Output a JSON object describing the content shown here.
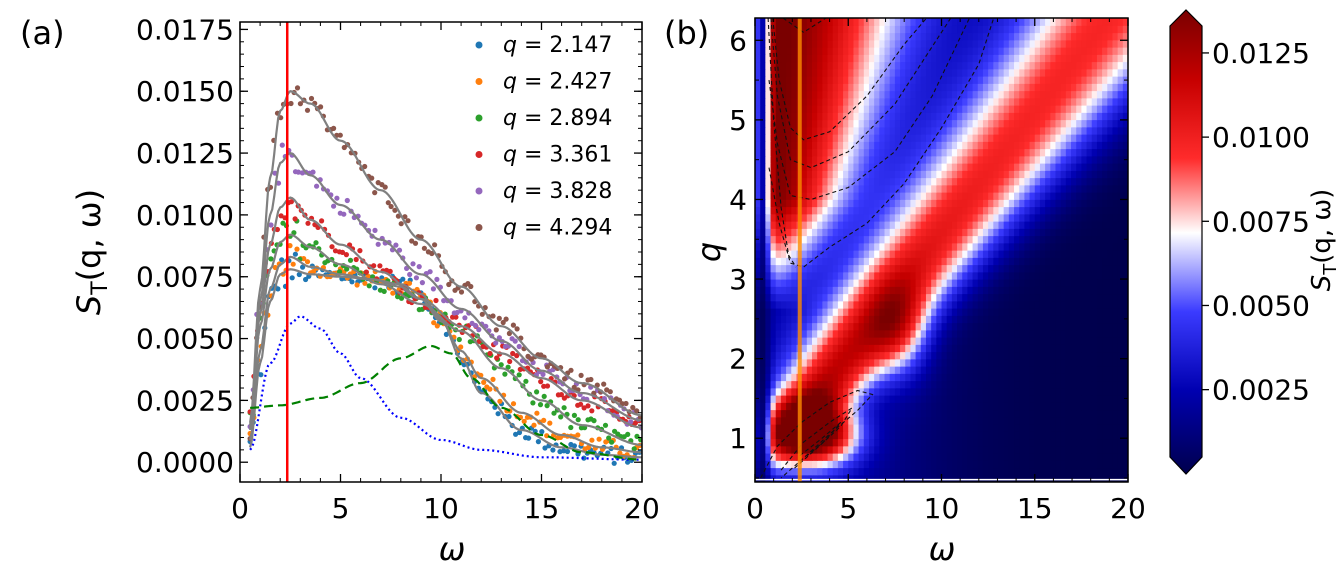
{
  "chart_data": [
    {
      "type": "scatter",
      "panel_label": "(a)",
      "xlabel": "ω",
      "ylabel_main": "S",
      "ylabel_sub": "T",
      "ylabel_rest": "(q, ω)",
      "xlim": [
        0,
        20
      ],
      "ylim": [
        -0.0008,
        0.0178
      ],
      "xticks": [
        "0",
        "5",
        "10",
        "15",
        "20"
      ],
      "yticks": [
        "0.0000",
        "0.0025",
        "0.0050",
        "0.0075",
        "0.0100",
        "0.0125",
        "0.0150",
        "0.0175"
      ],
      "vline_x": 2.35,
      "vline_color": "#ff0000",
      "legend_position": "top-right",
      "series": [
        {
          "name": "q = 2.147",
          "q_label": "q",
          "q_value": "= 2.147",
          "color": "#1f77b4",
          "knots": [
            [
              0.5,
              0.0006
            ],
            [
              1,
              0.004
            ],
            [
              1.5,
              0.0065
            ],
            [
              2,
              0.0076
            ],
            [
              2.5,
              0.0078
            ],
            [
              3.5,
              0.0076
            ],
            [
              5,
              0.0075
            ],
            [
              6.5,
              0.0074
            ],
            [
              8,
              0.0072
            ],
            [
              9,
              0.0068
            ],
            [
              10,
              0.0058
            ],
            [
              11,
              0.0042
            ],
            [
              12,
              0.0028
            ],
            [
              14,
              0.0013
            ],
            [
              16,
              0.0006
            ],
            [
              18,
              0.0003
            ],
            [
              20,
              0.0002
            ]
          ]
        },
        {
          "name": "q = 2.427",
          "q_label": "q",
          "q_value": "= 2.427",
          "color": "#ff7f0e",
          "knots": [
            [
              0.5,
              0.0009
            ],
            [
              1,
              0.0045
            ],
            [
              1.5,
              0.007
            ],
            [
              2,
              0.008
            ],
            [
              2.5,
              0.0083
            ],
            [
              3.5,
              0.0079
            ],
            [
              5,
              0.0076
            ],
            [
              6.5,
              0.0074
            ],
            [
              8,
              0.0071
            ],
            [
              9,
              0.0066
            ],
            [
              10,
              0.0057
            ],
            [
              11,
              0.0045
            ],
            [
              12,
              0.0034
            ],
            [
              14,
              0.002
            ],
            [
              16,
              0.0011
            ],
            [
              18,
              0.0006
            ],
            [
              20,
              0.0004
            ]
          ]
        },
        {
          "name": "q = 2.894",
          "q_label": "q",
          "q_value": "= 2.894",
          "color": "#2ca02c",
          "knots": [
            [
              0.5,
              0.0013
            ],
            [
              1,
              0.0055
            ],
            [
              1.5,
              0.0078
            ],
            [
              2,
              0.0089
            ],
            [
              2.5,
              0.0092
            ],
            [
              3.5,
              0.0087
            ],
            [
              5,
              0.008
            ],
            [
              7,
              0.0072
            ],
            [
              9,
              0.0064
            ],
            [
              11,
              0.0053
            ],
            [
              13,
              0.0038
            ],
            [
              15,
              0.0025
            ],
            [
              17,
              0.0015
            ],
            [
              20,
              0.0007
            ]
          ]
        },
        {
          "name": "q = 3.361",
          "q_label": "q",
          "q_value": "= 3.361",
          "color": "#d62728",
          "knots": [
            [
              0.5,
              0.0014
            ],
            [
              1,
              0.006
            ],
            [
              1.5,
              0.0088
            ],
            [
              2,
              0.0103
            ],
            [
              2.5,
              0.0107
            ],
            [
              3.5,
              0.0098
            ],
            [
              5,
              0.0088
            ],
            [
              7,
              0.0077
            ],
            [
              9,
              0.0066
            ],
            [
              11,
              0.0055
            ],
            [
              13,
              0.0044
            ],
            [
              15,
              0.0034
            ],
            [
              17,
              0.0025
            ],
            [
              20,
              0.0014
            ]
          ]
        },
        {
          "name": "q = 3.828",
          "q_label": "q",
          "q_value": "= 3.828",
          "color": "#9467bd",
          "knots": [
            [
              0.5,
              0.0015
            ],
            [
              1,
              0.0065
            ],
            [
              1.5,
              0.01
            ],
            [
              2,
              0.0121
            ],
            [
              2.5,
              0.0125
            ],
            [
              3.5,
              0.0116
            ],
            [
              5,
              0.0104
            ],
            [
              7,
              0.009
            ],
            [
              9,
              0.0076
            ],
            [
              11,
              0.0062
            ],
            [
              13,
              0.0049
            ],
            [
              15,
              0.0037
            ],
            [
              17,
              0.0028
            ],
            [
              20,
              0.0017
            ]
          ]
        },
        {
          "name": "q = 4.294",
          "q_label": "q",
          "q_value": "= 4.294",
          "color": "#8c564b",
          "knots": [
            [
              0.5,
              0.0016
            ],
            [
              1,
              0.007
            ],
            [
              1.5,
              0.0115
            ],
            [
              2,
              0.0142
            ],
            [
              2.5,
              0.015
            ],
            [
              3.5,
              0.0145
            ],
            [
              5,
              0.013
            ],
            [
              7,
              0.011
            ],
            [
              9,
              0.009
            ],
            [
              11,
              0.0071
            ],
            [
              13,
              0.0055
            ],
            [
              15,
              0.0042
            ],
            [
              17,
              0.0032
            ],
            [
              20,
              0.0019
            ]
          ]
        }
      ],
      "component_dotted": {
        "color": "#0000ff",
        "knots": [
          [
            0.5,
            0.0005
          ],
          [
            1.5,
            0.004
          ],
          [
            2.5,
            0.0056
          ],
          [
            3,
            0.0059
          ],
          [
            4,
            0.0054
          ],
          [
            5,
            0.0044
          ],
          [
            6,
            0.0034
          ],
          [
            8,
            0.0018
          ],
          [
            10,
            0.0009
          ],
          [
            12,
            0.0005
          ],
          [
            15,
            0.0002
          ],
          [
            20,
            0.0001
          ]
        ]
      },
      "component_dashed": {
        "color": "#008000",
        "knots": [
          [
            0.5,
            0.0022
          ],
          [
            2,
            0.0023
          ],
          [
            4,
            0.0026
          ],
          [
            6,
            0.0032
          ],
          [
            8,
            0.0042
          ],
          [
            9.5,
            0.0047
          ],
          [
            10.5,
            0.0044
          ],
          [
            11.5,
            0.0034
          ],
          [
            13,
            0.0022
          ],
          [
            15,
            0.0011
          ],
          [
            17,
            0.0004
          ],
          [
            20,
            0.0001
          ]
        ]
      }
    },
    {
      "type": "heatmap",
      "panel_label": "(b)",
      "xlabel": "ω",
      "ylabel": "q",
      "xlim": [
        0,
        20
      ],
      "ylim": [
        0.45,
        6.28
      ],
      "xticks": [
        "0",
        "5",
        "10",
        "15",
        "20"
      ],
      "yticks": [
        "1",
        "2",
        "3",
        "4",
        "5",
        "6"
      ],
      "vline_x": 2.4,
      "vline_color": "#ff8c00",
      "colorbar": {
        "label_main": "S",
        "label_sub": "T",
        "label_rest": "(q, ω)",
        "range": [
          0.0005,
          0.0133
        ],
        "ticks": [
          "0.0025",
          "0.0050",
          "0.0075",
          "0.0100",
          "0.0125"
        ],
        "colors": [
          "#00004d",
          "#0000b0",
          "#3b3bff",
          "#ffffff",
          "#ff2b2b",
          "#c60000",
          "#7a0000"
        ]
      },
      "contours": [
        [
          [
            0.95,
            6.28
          ],
          [
            1.3,
            5.5
          ],
          [
            1.9,
            4.9
          ],
          [
            2.6,
            4.75
          ],
          [
            4,
            4.85
          ],
          [
            6,
            5.3
          ],
          [
            8,
            5.95
          ],
          [
            9.2,
            6.28
          ]
        ],
        [
          [
            0.85,
            6.28
          ],
          [
            1.2,
            5.3
          ],
          [
            1.9,
            4.5
          ],
          [
            3,
            4.4
          ],
          [
            5,
            4.6
          ],
          [
            7.5,
            5.2
          ],
          [
            10.5,
            6.28
          ]
        ],
        [
          [
            0.75,
            5.5
          ],
          [
            1.2,
            4.7
          ],
          [
            1.9,
            4.05
          ],
          [
            3,
            4.0
          ],
          [
            5,
            4.15
          ],
          [
            7.5,
            4.6
          ],
          [
            9.5,
            5.3
          ],
          [
            11.5,
            6.28
          ]
        ],
        [
          [
            0.75,
            4.4
          ],
          [
            1.3,
            3.7
          ],
          [
            1.9,
            3.2
          ],
          [
            2.6,
            3.15
          ],
          [
            4,
            3.4
          ],
          [
            6,
            3.7
          ],
          [
            8,
            4.2
          ],
          [
            10,
            4.9
          ],
          [
            12,
            5.7
          ],
          [
            12.8,
            6.28
          ]
        ],
        [
          [
            0.7,
            6.28
          ],
          [
            1.0,
            5.0
          ],
          [
            1.4,
            3.9
          ],
          [
            1.8,
            3.3
          ],
          [
            2.2,
            3.15
          ]
        ],
        [
          [
            1.5,
            6.28
          ],
          [
            2.6,
            6.1
          ],
          [
            3.8,
            6.28
          ]
        ],
        [
          [
            0.3,
            0.5
          ],
          [
            1.2,
            0.9
          ],
          [
            2.5,
            1.2
          ],
          [
            4,
            1.45
          ],
          [
            5.5,
            1.6
          ],
          [
            6.3,
            1.55
          ],
          [
            5.5,
            1.35
          ],
          [
            4,
            1.05
          ],
          [
            2.6,
            0.75
          ],
          [
            1.4,
            0.5
          ]
        ],
        [
          [
            1.4,
            0.6
          ],
          [
            2.6,
            0.95
          ],
          [
            4,
            1.2
          ],
          [
            5.2,
            1.38
          ],
          [
            4.6,
            1.15
          ],
          [
            3.2,
            0.85
          ],
          [
            2,
            0.6
          ]
        ],
        [
          [
            2.4,
            0.78
          ],
          [
            3.6,
            1.0
          ],
          [
            4.6,
            1.2
          ],
          [
            3.8,
            0.98
          ],
          [
            2.8,
            0.78
          ]
        ]
      ]
    }
  ]
}
